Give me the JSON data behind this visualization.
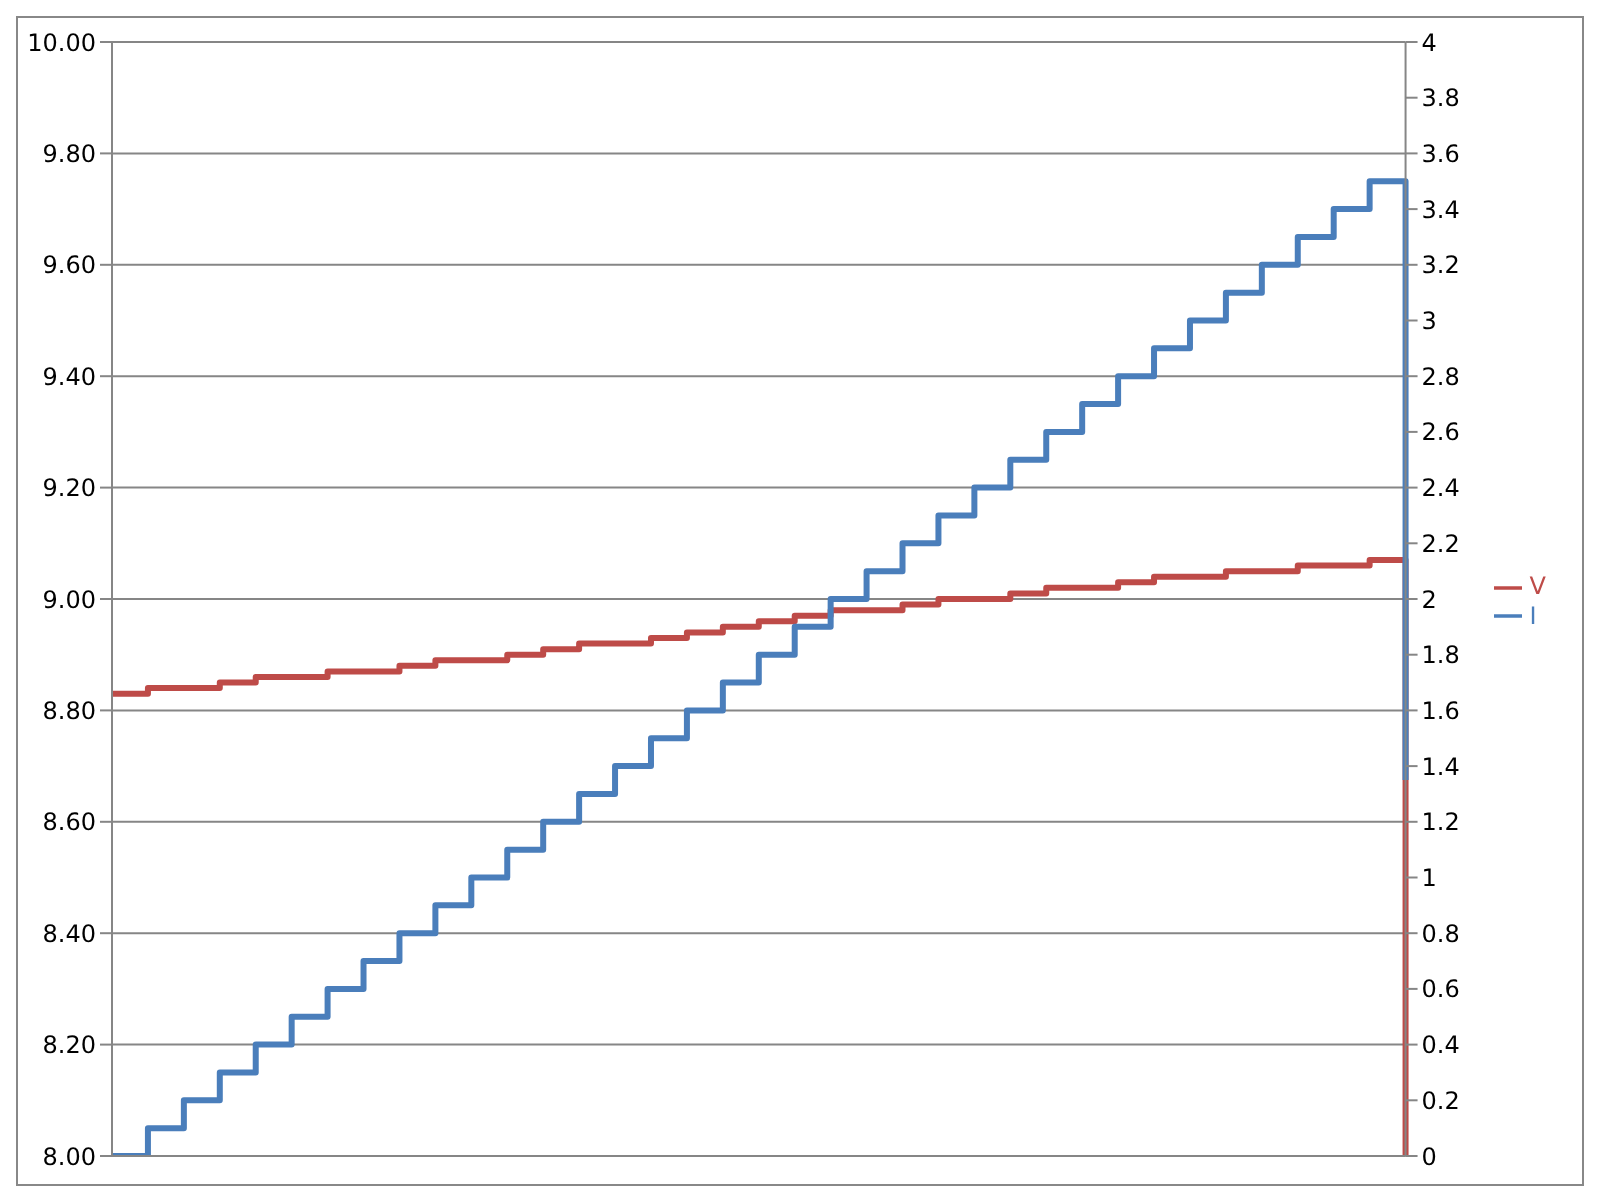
{
  "chart_data": {
    "type": "line",
    "categories": [
      null,
      null,
      null,
      null,
      null,
      null,
      null,
      null,
      null,
      null,
      null,
      null,
      null,
      null,
      null,
      null,
      null,
      null,
      null,
      null,
      null,
      null,
      null,
      null,
      null,
      null,
      null,
      null,
      null,
      null,
      null,
      null,
      null,
      null,
      null,
      null,
      null
    ],
    "series": [
      {
        "name": "V",
        "type": "step",
        "color": "#be4b48",
        "values": [
          8.83,
          8.84,
          8.84,
          8.85,
          8.86,
          8.86,
          8.87,
          8.87,
          8.88,
          8.89,
          8.89,
          8.9,
          8.91,
          8.92,
          8.92,
          8.93,
          8.94,
          8.95,
          8.96,
          8.97,
          8.98,
          8.98,
          8.99,
          9.0,
          9.0,
          9.01,
          9.02,
          9.02,
          9.03,
          9.04,
          9.04,
          9.05,
          9.05,
          9.06,
          9.06,
          9.07,
          8.0
        ]
      },
      {
        "name": "I",
        "type": "step",
        "axis": "y2",
        "color": "#4a7ebb",
        "values": [
          0,
          0.1,
          0.2,
          0.3,
          0.4,
          0.5,
          0.6,
          0.7,
          0.8,
          0.9,
          1.0,
          1.1,
          1.2,
          1.3,
          1.4,
          1.5,
          1.6,
          1.7,
          1.8,
          1.9,
          2.0,
          2.1,
          2.2,
          2.3,
          2.4,
          2.5,
          2.6,
          2.7,
          2.8,
          2.9,
          3.0,
          3.1,
          3.2,
          3.3,
          3.4,
          3.5,
          1.35
        ]
      }
    ],
    "ylim": [
      8,
      10
    ],
    "yticks": [
      {
        "value": 8,
        "label": "8.00"
      },
      {
        "value": 8.2,
        "label": "8.20"
      },
      {
        "value": 8.4,
        "label": "8.40"
      },
      {
        "value": 8.6,
        "label": "8.60"
      },
      {
        "value": 8.8,
        "label": "8.80"
      },
      {
        "value": 9,
        "label": "9.00"
      },
      {
        "value": 9.2,
        "label": "9.20"
      },
      {
        "value": 9.4,
        "label": "9.40"
      },
      {
        "value": 9.6,
        "label": "9.60"
      },
      {
        "value": 9.8,
        "label": "9.80"
      },
      {
        "value": 10,
        "label": "10.00"
      }
    ],
    "y2lim": [
      0,
      4
    ],
    "y2ticks": [
      0,
      0.2,
      0.4,
      0.6,
      0.8,
      1,
      1.2,
      1.4,
      1.6,
      1.8,
      2,
      2.2,
      2.4,
      2.6,
      2.8,
      3,
      3.2,
      3.4,
      3.6,
      3.8,
      4
    ],
    "grid": "y",
    "legend": "right",
    "marker": "none"
  }
}
